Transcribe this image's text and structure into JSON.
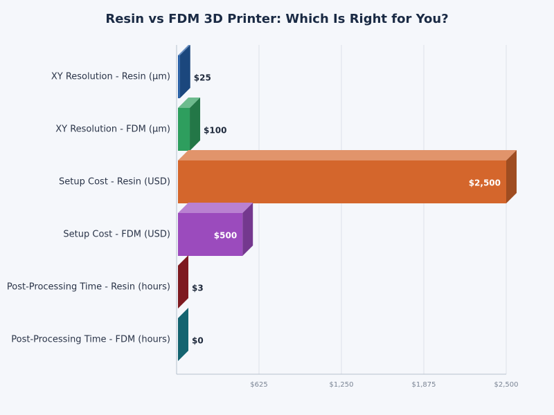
{
  "chart_data": {
    "type": "bar",
    "orientation": "horizontal",
    "title": "Resin vs FDM 3D Printer: Which Is Right for You?",
    "categories": [
      "XY Resolution - Resin (µm)",
      "XY Resolution - FDM (µm)",
      "Setup Cost - Resin (USD)",
      "Setup Cost - FDM (USD)",
      "Post-Processing Time - Resin (hours)",
      "Post-Processing Time - FDM (hours)"
    ],
    "values": [
      25,
      100,
      2500,
      500,
      3,
      0
    ],
    "value_labels": [
      "$25",
      "$100",
      "$2,500",
      "$500",
      "$3",
      "$0"
    ],
    "colors": [
      "#245ea6",
      "#2e9e5e",
      "#d4662c",
      "#9b4bbd",
      "#a8222b",
      "#1b8595"
    ],
    "xlim": [
      0,
      2500
    ],
    "xticks": [
      {
        "value": 625,
        "label": "$625"
      },
      {
        "value": 1250,
        "label": "$1,250"
      },
      {
        "value": 1875,
        "label": "$1,875"
      },
      {
        "value": 2500,
        "label": "$2,500"
      }
    ],
    "grid": true
  }
}
